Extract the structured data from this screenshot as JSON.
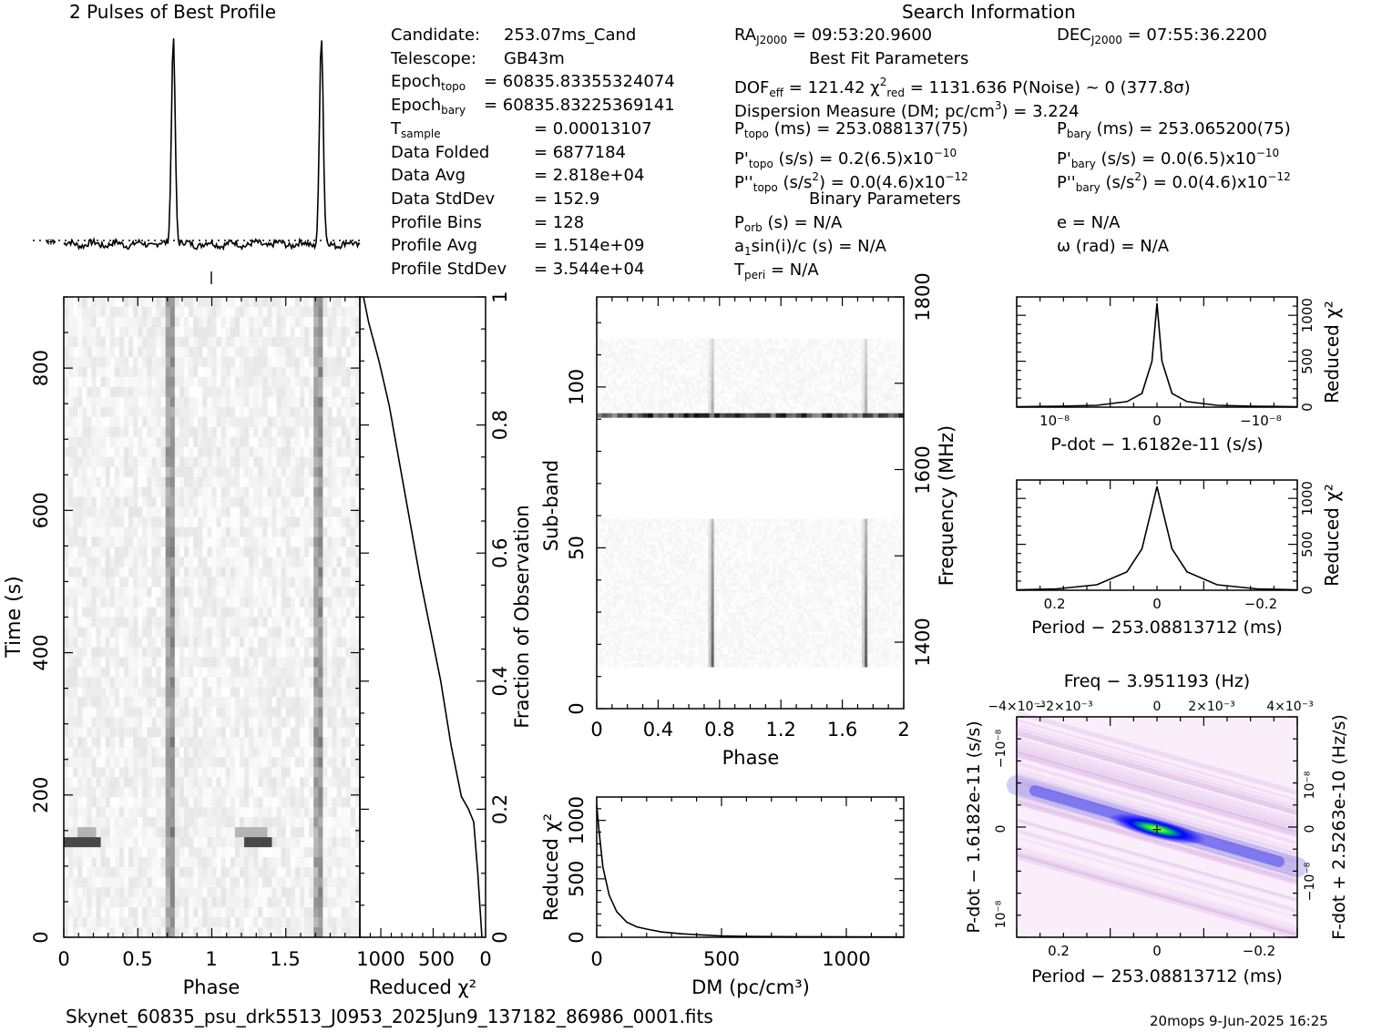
{
  "profile_title": "2 Pulses of Best Profile",
  "search_title": "Search Information",
  "best_fit_title": "Best Fit Parameters",
  "binary_title": "Binary Parameters",
  "info_left": [
    {
      "k": "Candidate:",
      "v": "253.07ms_Cand"
    },
    {
      "k": "Telescope:",
      "v": "GB43m"
    },
    {
      "k": "Epoch",
      "sub": "topo",
      "v": "= 60835.83355324074"
    },
    {
      "k": "Epoch",
      "sub": "bary",
      "v": "= 60835.83225369141"
    },
    {
      "k": "T",
      "sub": "sample",
      "v": "=   0.00013107"
    },
    {
      "k": "Data Folded",
      "v": "=   6877184"
    },
    {
      "k": "Data Avg",
      "v": "=   2.818e+04"
    },
    {
      "k": "Data StdDev",
      "v": "=   152.9"
    },
    {
      "k": "Profile Bins",
      "v": "=   128"
    },
    {
      "k": "Profile Avg",
      "v": "=   1.514e+09"
    },
    {
      "k": "Profile StdDev",
      "v": "=   3.544e+04"
    }
  ],
  "ra_line": {
    "pre": "RA",
    "sub": "J2000",
    "post": " = 09:53:20.9600"
  },
  "dec_line": {
    "pre": "DEC",
    "sub": "J2000",
    "post": " = 07:55:36.2200"
  },
  "fit_line1": "DOF",
  "fit_line1_sub": "eff",
  "fit_line1_post": " = 121.42   χ",
  "fit_chi_sup": "2",
  "fit_chi_sub": "red",
  "fit_line1_post2": " = 1131.636   P(Noise) ~ 0    (377.8σ)",
  "dm_line": "Dispersion Measure (DM; pc/cm",
  "dm_sup": "3",
  "dm_post": ") = 3.224",
  "ptopo": {
    "pre": "P",
    "sub": "topo",
    "post": " (ms) =  253.088137(75)"
  },
  "pbary": {
    "pre": "P",
    "sub": "bary",
    "post": " (ms) =  253.065200(75)"
  },
  "pdtopo": {
    "pre": "P'",
    "sub": "topo",
    "post": " (s/s) =  0.2(6.5)x10",
    "sup": "−10"
  },
  "pdbary": {
    "pre": "P'",
    "sub": "bary",
    "post": " (s/s) = 0.0(6.5)x10",
    "sup": "−10"
  },
  "pddtopo": {
    "pre": "P''",
    "sub": "topo",
    "post": " (s/s",
    "sup1": "2",
    "post2": ") = 0.0(4.6)x10",
    "sup": "−12"
  },
  "pddbary": {
    "pre": "P''",
    "sub": "bary",
    "post": " (s/s",
    "sup1": "2",
    "post2": ") = 0.0(4.6)x10",
    "sup": "−12"
  },
  "porb": {
    "pre": "P",
    "sub": "orb",
    "post": " (s) = N/A"
  },
  "ecc": "e = N/A",
  "a1": {
    "pre": "a",
    "sub": "1",
    "post": "sin(i)/c (s) = N/A"
  },
  "omega": "ω (rad) = N/A",
  "tperi": {
    "pre": "T",
    "sub": "peri",
    "post": " = N/A"
  },
  "filename": "Skynet_60835_psu_drk5513_J0953_2025Jun9_137182_86986_0001.fits",
  "footer_right": "20mops  9-Jun-2025 16:25",
  "colors": {
    "ink": "#000000",
    "grey_dark": "#303030"
  },
  "chart_data": [
    {
      "type": "line",
      "title": "2 Pulses of Best Profile",
      "x": [
        0,
        0.1,
        0.2,
        0.3,
        0.4,
        0.5,
        0.6,
        0.65,
        0.7,
        0.72,
        0.74,
        0.76,
        0.8,
        0.9,
        1.0,
        1.1,
        1.2,
        1.3,
        1.4,
        1.5,
        1.6,
        1.65,
        1.7,
        1.72,
        1.74,
        1.76,
        1.8,
        1.9,
        2.0
      ],
      "y": [
        0.05,
        0.03,
        0.06,
        0.02,
        0.04,
        0.03,
        0.02,
        0.06,
        0.4,
        1.0,
        0.45,
        0.08,
        0.03,
        0.02,
        0.05,
        0.03,
        0.06,
        0.02,
        0.04,
        0.03,
        0.02,
        0.06,
        0.4,
        1.0,
        0.45,
        0.08,
        0.03,
        0.02,
        0.05
      ]
    },
    {
      "type": "heatmap",
      "xlabel": "Phase",
      "ylabel": "Time (s)",
      "x_ticks": [
        "0",
        "0.5",
        "1",
        "1.5"
      ],
      "y_ticks": [
        "0",
        "200",
        "400",
        "600",
        "800"
      ],
      "xlim": [
        0,
        2
      ],
      "ylim": [
        0,
        900
      ],
      "pulse_phases": [
        0.72,
        1.72
      ]
    },
    {
      "type": "line",
      "xlabel": "Reduced χ²",
      "ylabel": "Fraction of Observation",
      "x_ticks": [
        "1000",
        "500",
        "0"
      ],
      "y_ticks": [
        "0",
        "0.2",
        "0.4",
        "0.6",
        "0.8",
        "1"
      ],
      "x": [
        0,
        20,
        40,
        80,
        130,
        200,
        300,
        400,
        500,
        600,
        700,
        800,
        900,
        1000,
        1100,
        1150
      ],
      "y": [
        0,
        0.05,
        0.1,
        0.18,
        0.2,
        0.22,
        0.3,
        0.4,
        0.48,
        0.56,
        0.65,
        0.74,
        0.83,
        0.9,
        0.96,
        1.0
      ]
    },
    {
      "type": "heatmap",
      "xlabel": "Phase",
      "ylabel": "Sub-band",
      "y2label": "Frequency (MHz)",
      "x_ticks": [
        "0",
        "0.4",
        "0.8",
        "1.2",
        "1.6",
        "2"
      ],
      "y_ticks": [
        "0",
        "50",
        "100"
      ],
      "y2_ticks": [
        "1400",
        "1600",
        "1800"
      ],
      "xlim": [
        0,
        2
      ],
      "ylim": [
        0,
        128
      ],
      "pulse_phases": [
        0.72,
        1.72
      ]
    },
    {
      "type": "line",
      "xlabel": "DM (pc/cm³)",
      "ylabel": "Reduced χ²",
      "x_ticks": [
        "0",
        "500",
        "1000"
      ],
      "y_ticks": [
        "0",
        "500",
        "1000"
      ],
      "xlim": [
        0,
        1230
      ],
      "ylim": [
        0,
        1200
      ],
      "x": [
        0,
        10,
        25,
        50,
        80,
        120,
        160,
        200,
        260,
        340,
        420,
        500,
        600,
        800,
        1000,
        1230
      ],
      "y": [
        1130,
        900,
        600,
        360,
        220,
        130,
        90,
        70,
        45,
        30,
        20,
        12,
        8,
        5,
        3,
        2
      ]
    },
    {
      "type": "line",
      "xlabel": "P-dot − 1.6182e-11 (s/s)",
      "ylabel": "Reduced χ²",
      "x_ticks": [
        "10⁻⁸",
        "0",
        "−10⁻⁸"
      ],
      "y_ticks": [
        "0",
        "500",
        "1000"
      ],
      "x": [
        -1.4,
        -1.0,
        -0.6,
        -0.3,
        -0.15,
        -0.05,
        0,
        0.05,
        0.15,
        0.3,
        0.6,
        1.0,
        1.4
      ],
      "y": [
        5,
        10,
        20,
        60,
        150,
        500,
        1130,
        500,
        150,
        60,
        20,
        10,
        5
      ]
    },
    {
      "type": "line",
      "xlabel": "Period − 253.08813712 (ms)",
      "ylabel": "Reduced χ²",
      "x_ticks": [
        "0.2",
        "0",
        "−0.2"
      ],
      "y_ticks": [
        "0",
        "500",
        "1000"
      ],
      "x": [
        0.28,
        0.2,
        0.12,
        0.06,
        0.03,
        0.01,
        0,
        -0.01,
        -0.03,
        -0.06,
        -0.12,
        -0.2,
        -0.28
      ],
      "y": [
        5,
        15,
        60,
        200,
        450,
        900,
        1130,
        900,
        450,
        200,
        60,
        15,
        5
      ]
    },
    {
      "type": "heatmap",
      "title": "Freq − 3.951193 (Hz)",
      "xlabel": "Period − 253.08813712 (ms)",
      "ylabel": "P-dot − 1.6182e-11 (s/s)",
      "y2label": "F-dot + 2.5263e-10 (Hz/s)",
      "x_ticks": [
        "0.2",
        "0",
        "−0.2"
      ],
      "x2_ticks": [
        "−4×10⁻³",
        "−2×10⁻³",
        "0",
        "2×10⁻³",
        "4×10⁻³"
      ],
      "y_ticks": [
        "−10⁻⁸",
        "0",
        "10⁻⁸"
      ],
      "y2_ticks": [
        "10⁻⁸",
        "0",
        "−10⁻⁸"
      ]
    }
  ]
}
